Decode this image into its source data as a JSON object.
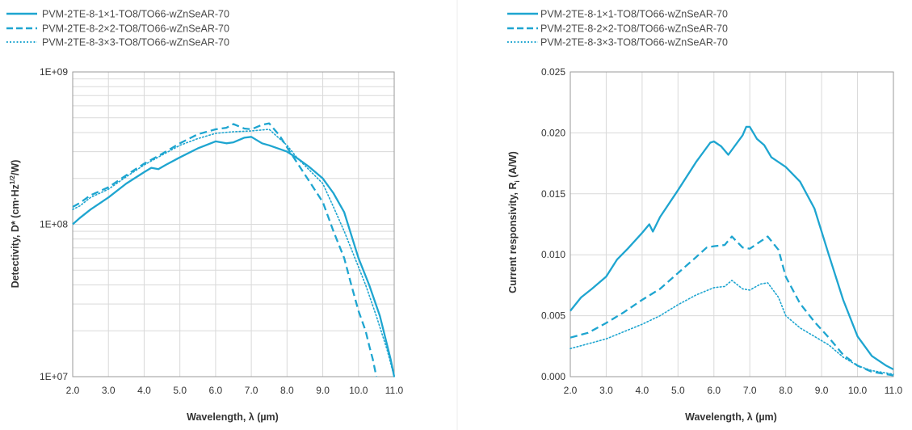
{
  "colors": {
    "series": "#1ea5d0",
    "grid": "#d9d9d9",
    "frame": "#9a9a9a",
    "separator": "#e8e8e8"
  },
  "chart_data": [
    {
      "id": "detectivity",
      "type": "line",
      "yscale": "log",
      "xlabel": "Wavelength, λ (µm)",
      "ylabel": {
        "main": "Detectivity, D* (cm·Hz",
        "sup": "1/2",
        "tail": "/W)"
      },
      "xlim": [
        2.0,
        11.0
      ],
      "ylim": [
        10000000,
        1000000000
      ],
      "xticks": [
        2,
        3,
        4,
        5,
        6,
        7,
        8,
        9,
        10,
        11
      ],
      "xtick_labels": [
        "2.0",
        "3.0",
        "4.0",
        "5.0",
        "6.0",
        "7.0",
        "8.0",
        "9.0",
        "10.0",
        "11.0"
      ],
      "yticks": [
        10000000,
        100000000,
        1000000000
      ],
      "ytick_labels": [
        "1E+07",
        "1E+08",
        "1E+09"
      ],
      "grid": "log-minor",
      "legend": "top-left",
      "series": [
        {
          "name": "PVM-2TE-8-1×1-TO8/TO66-wZnSeAR-70",
          "style": "solid",
          "x": [
            2.0,
            2.2,
            2.5,
            3.0,
            3.5,
            4.0,
            4.2,
            4.4,
            4.6,
            5.0,
            5.5,
            6.0,
            6.3,
            6.5,
            6.8,
            7.0,
            7.3,
            7.5,
            8.0,
            8.3,
            8.6,
            9.0,
            9.3,
            9.6,
            10.0,
            10.3,
            10.6,
            10.9,
            11.0
          ],
          "y": [
            100000000,
            110000000,
            125000000,
            150000000,
            185000000,
            220000000,
            235000000,
            230000000,
            245000000,
            275000000,
            315000000,
            350000000,
            340000000,
            345000000,
            370000000,
            375000000,
            340000000,
            330000000,
            300000000,
            270000000,
            240000000,
            200000000,
            160000000,
            120000000,
            60000000,
            40000000,
            25000000,
            13000000,
            10000000
          ]
        },
        {
          "name": "PVM-2TE-8-2×2-TO8/TO66-wZnSeAR-70",
          "style": "dashed",
          "x": [
            2.0,
            2.2,
            2.5,
            3.0,
            3.5,
            4.0,
            4.5,
            5.0,
            5.5,
            6.0,
            6.3,
            6.5,
            6.8,
            7.0,
            7.3,
            7.5,
            7.8,
            8.0,
            8.3,
            8.6,
            9.0,
            9.3,
            9.6,
            9.8,
            10.0,
            10.2,
            10.3,
            10.4,
            10.5
          ],
          "y": [
            130000000,
            138000000,
            155000000,
            175000000,
            210000000,
            250000000,
            290000000,
            340000000,
            390000000,
            420000000,
            430000000,
            455000000,
            425000000,
            420000000,
            450000000,
            460000000,
            380000000,
            320000000,
            250000000,
            195000000,
            140000000,
            90000000,
            60000000,
            40000000,
            27000000,
            20000000,
            16000000,
            13000000,
            10000000
          ]
        },
        {
          "name": "PVM-2TE-8-3×3-TO8/TO66-wZnSeAR-70",
          "style": "dotted",
          "x": [
            2.0,
            2.2,
            2.5,
            3.0,
            3.5,
            4.0,
            4.5,
            5.0,
            5.5,
            6.0,
            6.5,
            7.0,
            7.5,
            8.0,
            8.3,
            8.6,
            9.0,
            9.3,
            9.6,
            9.9,
            10.2,
            10.5,
            10.8,
            11.0
          ],
          "y": [
            125000000,
            132000000,
            150000000,
            170000000,
            205000000,
            245000000,
            285000000,
            330000000,
            365000000,
            395000000,
            405000000,
            410000000,
            420000000,
            330000000,
            270000000,
            230000000,
            185000000,
            130000000,
            90000000,
            60000000,
            40000000,
            25000000,
            15000000,
            10000000
          ]
        }
      ]
    },
    {
      "id": "responsivity",
      "type": "line",
      "yscale": "linear",
      "xlabel": "Wavelength, λ (µm)",
      "ylabel": {
        "main": "Current responsivity, R",
        "sub": "i",
        "tail": " (A/W)"
      },
      "xlim": [
        2.0,
        11.0
      ],
      "ylim": [
        0,
        0.025
      ],
      "xticks": [
        2,
        3,
        4,
        5,
        6,
        7,
        8,
        9,
        10,
        11
      ],
      "xtick_labels": [
        "2.0",
        "3.0",
        "4.0",
        "5.0",
        "6.0",
        "7.0",
        "8.0",
        "9.0",
        "10.0",
        "11.0"
      ],
      "yticks": [
        0,
        0.005,
        0.01,
        0.015,
        0.02,
        0.025
      ],
      "ytick_labels": [
        "0.000",
        "0.005",
        "0.010",
        "0.015",
        "0.020",
        "0.025"
      ],
      "grid": "linear",
      "legend": "top-left",
      "series": [
        {
          "name": "PVM-2TE-8-1×1-TO8/TO66-wZnSeAR-70",
          "style": "solid",
          "x": [
            2.0,
            2.3,
            2.6,
            3.0,
            3.3,
            3.6,
            4.0,
            4.2,
            4.3,
            4.5,
            5.0,
            5.5,
            5.9,
            6.0,
            6.2,
            6.4,
            6.6,
            6.8,
            6.9,
            7.0,
            7.2,
            7.4,
            7.6,
            8.0,
            8.4,
            8.8,
            9.2,
            9.6,
            10.0,
            10.4,
            10.8,
            11.0
          ],
          "y": [
            0.0054,
            0.0065,
            0.0072,
            0.0082,
            0.0096,
            0.0105,
            0.0118,
            0.0125,
            0.0119,
            0.0131,
            0.0153,
            0.0176,
            0.0192,
            0.0193,
            0.0189,
            0.0182,
            0.019,
            0.0198,
            0.0205,
            0.0205,
            0.0195,
            0.019,
            0.018,
            0.0172,
            0.016,
            0.0138,
            0.01,
            0.0063,
            0.0033,
            0.0017,
            0.0009,
            0.0006
          ]
        },
        {
          "name": "PVM-2TE-8-2×2-TO8/TO66-wZnSeAR-70",
          "style": "dashed",
          "x": [
            2.0,
            2.5,
            3.0,
            3.5,
            4.0,
            4.5,
            5.0,
            5.5,
            5.8,
            6.0,
            6.3,
            6.5,
            6.8,
            7.0,
            7.3,
            7.5,
            7.8,
            8.0,
            8.4,
            8.8,
            9.2,
            9.6,
            10.0,
            10.4,
            10.8,
            11.0
          ],
          "y": [
            0.0032,
            0.0036,
            0.0044,
            0.0053,
            0.0063,
            0.0072,
            0.0085,
            0.0098,
            0.0106,
            0.0107,
            0.0108,
            0.0115,
            0.0106,
            0.0105,
            0.0111,
            0.0115,
            0.0104,
            0.0082,
            0.006,
            0.0045,
            0.0032,
            0.0018,
            0.0009,
            0.0004,
            0.0002,
            0.0001
          ]
        },
        {
          "name": "PVM-2TE-8-3×3-TO8/TO66-wZnSeAR-70",
          "style": "dotted",
          "x": [
            2.0,
            2.5,
            3.0,
            3.5,
            4.0,
            4.5,
            5.0,
            5.5,
            6.0,
            6.3,
            6.5,
            6.8,
            7.0,
            7.3,
            7.5,
            7.8,
            8.0,
            8.4,
            8.8,
            9.2,
            9.6,
            10.0,
            10.4,
            10.8,
            11.0
          ],
          "y": [
            0.0023,
            0.0027,
            0.0031,
            0.0037,
            0.0043,
            0.005,
            0.0059,
            0.0067,
            0.0073,
            0.0074,
            0.0079,
            0.0072,
            0.0071,
            0.0076,
            0.0077,
            0.0065,
            0.005,
            0.004,
            0.0033,
            0.0026,
            0.0016,
            0.0009,
            0.0005,
            0.0003,
            0.0002
          ]
        }
      ]
    }
  ]
}
